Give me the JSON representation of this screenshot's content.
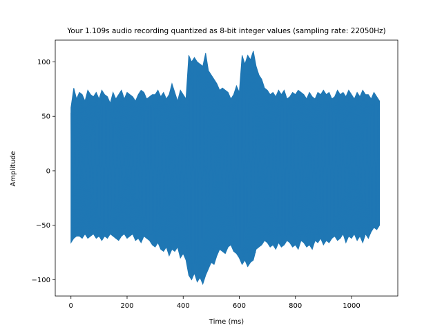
{
  "chart_data": {
    "type": "line",
    "title": "Your 1.109s audio recording quantized as 8-bit integer values (sampling rate: 22050Hz)",
    "xlabel": "Time (ms)",
    "ylabel": "Amplitude",
    "xlim": [
      -56,
      1165
    ],
    "ylim": [
      -115,
      120
    ],
    "xticks": [
      0,
      200,
      400,
      600,
      800,
      1000
    ],
    "yticks": [
      -100,
      -50,
      0,
      50,
      100
    ],
    "grid": false,
    "series": [
      {
        "color": "#1f77b4",
        "envelope_step_ms": 10,
        "x_start": 0,
        "x_end": 1109,
        "upper": [
          58,
          76,
          66,
          72,
          70,
          64,
          74,
          70,
          68,
          72,
          66,
          74,
          70,
          68,
          62,
          72,
          66,
          70,
          74,
          66,
          72,
          70,
          68,
          64,
          70,
          74,
          72,
          66,
          68,
          70,
          70,
          74,
          68,
          72,
          66,
          70,
          80,
          72,
          64,
          74,
          70,
          66,
          106,
          100,
          104,
          100,
          98,
          96,
          108,
          92,
          88,
          84,
          80,
          74,
          76,
          74,
          72,
          66,
          70,
          78,
          72,
          106,
          98,
          106,
          102,
          110,
          96,
          88,
          84,
          76,
          74,
          70,
          72,
          68,
          74,
          70,
          74,
          66,
          68,
          72,
          70,
          74,
          72,
          70,
          66,
          72,
          68,
          66,
          72,
          70,
          74,
          70,
          72,
          66,
          68,
          74,
          70,
          72,
          68,
          74,
          70,
          66,
          72,
          68,
          74,
          70,
          70,
          66,
          72,
          68,
          64
        ],
        "lower": [
          -66,
          -62,
          -60,
          -60,
          -62,
          -58,
          -62,
          -60,
          -58,
          -62,
          -60,
          -64,
          -60,
          -62,
          -58,
          -60,
          -62,
          -64,
          -60,
          -58,
          -62,
          -60,
          -58,
          -64,
          -62,
          -66,
          -60,
          -62,
          -64,
          -68,
          -70,
          -66,
          -72,
          -74,
          -70,
          -78,
          -72,
          -74,
          -70,
          -80,
          -76,
          -82,
          -96,
          -100,
          -94,
          -102,
          -98,
          -104,
          -96,
          -90,
          -84,
          -86,
          -78,
          -72,
          -74,
          -76,
          -70,
          -68,
          -74,
          -76,
          -80,
          -86,
          -82,
          -88,
          -84,
          -82,
          -72,
          -70,
          -68,
          -64,
          -66,
          -70,
          -68,
          -72,
          -66,
          -70,
          -68,
          -64,
          -66,
          -70,
          -68,
          -72,
          -64,
          -66,
          -70,
          -68,
          -72,
          -64,
          -66,
          -62,
          -68,
          -64,
          -66,
          -62,
          -60,
          -64,
          -62,
          -58,
          -66,
          -60,
          -62,
          -58,
          -64,
          -60,
          -66,
          -58,
          -62,
          -56,
          -52,
          -54,
          -50
        ]
      }
    ]
  }
}
